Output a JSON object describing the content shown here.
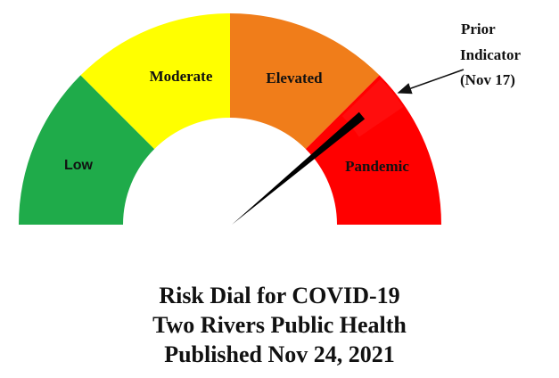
{
  "chart_data": {
    "type": "gauge",
    "bands": [
      {
        "label": "Low",
        "color": "#1fab4a"
      },
      {
        "label": "Moderate",
        "color": "#ffff00"
      },
      {
        "label": "Elevated",
        "color": "#f07d1a"
      },
      {
        "label": "Pandemic",
        "color": "#ff0000"
      }
    ],
    "needle_value": 0.78,
    "prior_indicator": {
      "value": 0.8,
      "label": [
        "Prior",
        "Indicator",
        "(Nov 17)"
      ]
    },
    "title_lines": [
      "Risk Dial for COVID-19",
      "Two Rivers Public Health",
      "Published Nov 24, 2021"
    ]
  }
}
